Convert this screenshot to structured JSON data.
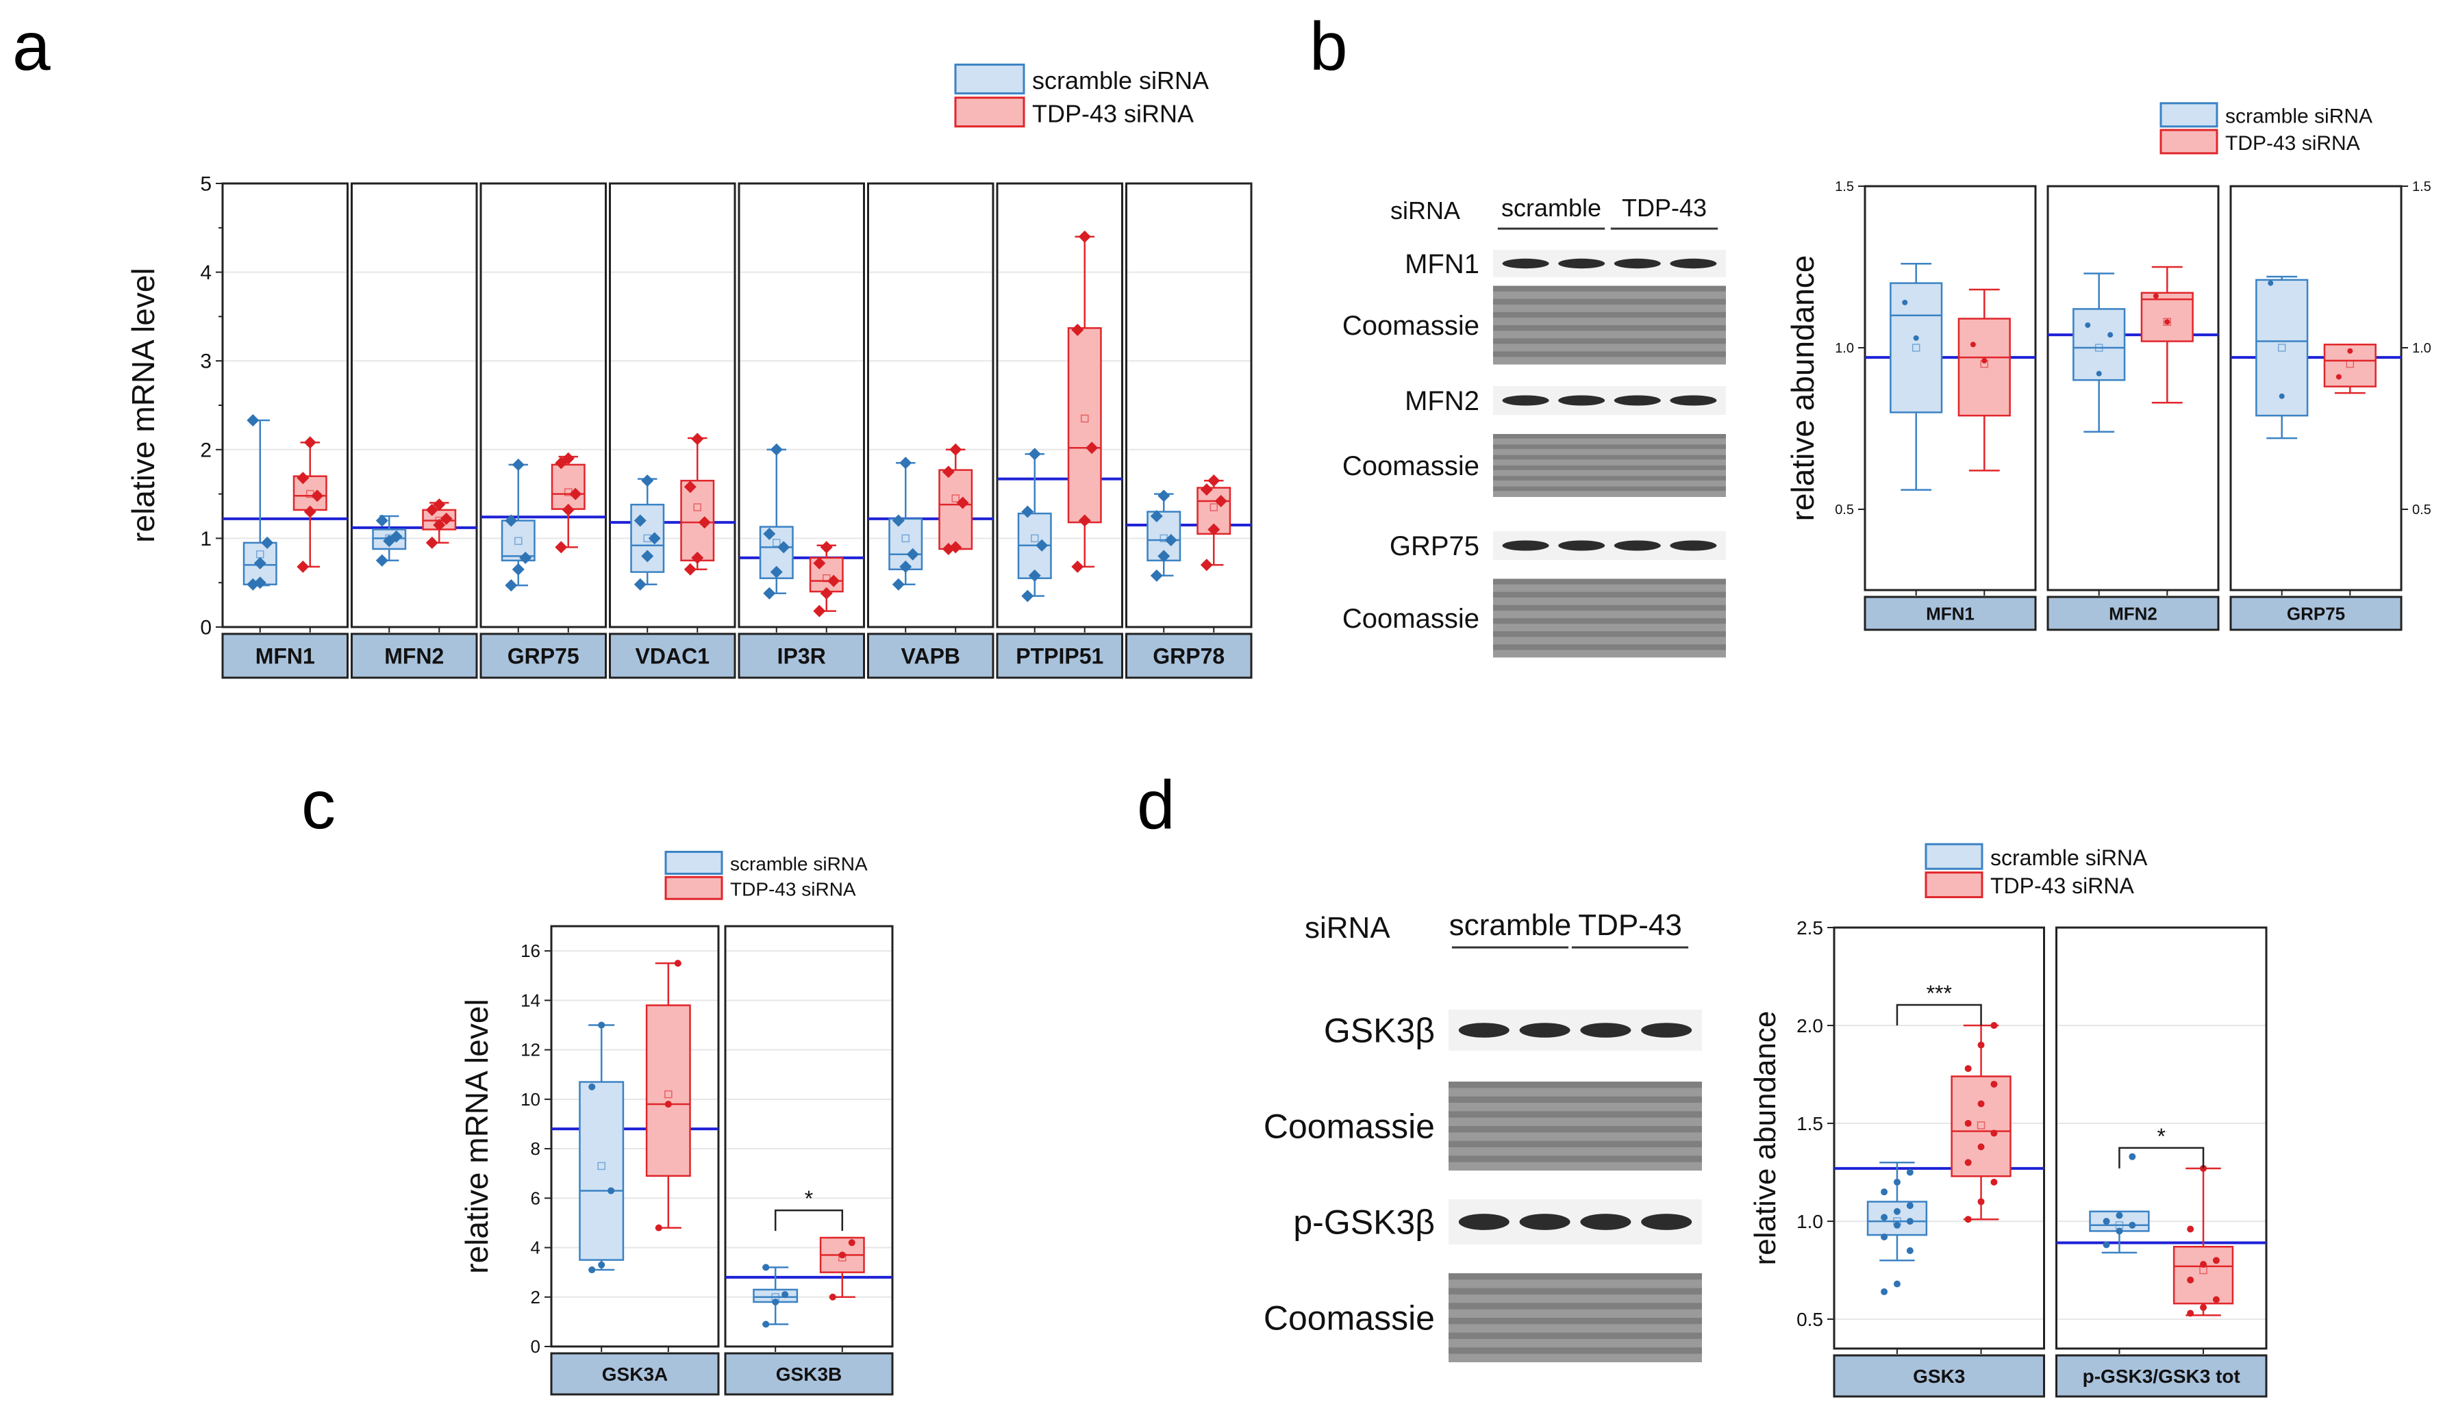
{
  "figure": {
    "panel_labels": [
      "a",
      "b",
      "c",
      "d"
    ]
  },
  "colors": {
    "scramble_fill": "#cfe1f3",
    "scramble_stroke": "#3b82c4",
    "scramble_point": "#2f74b5",
    "tdp_fill": "#f8b8b8",
    "tdp_stroke": "#e0262b",
    "tdp_point": "#d81e24",
    "mean_line": "#1f22d6",
    "strip_fill": "#a9c2dc",
    "blot_band": "#2c2c2c"
  },
  "legend": {
    "scramble": "scramble siRNA",
    "tdp": "TDP-43 siRNA"
  },
  "blots": {
    "b": {
      "header_label": "siRNA",
      "groups": [
        "scramble",
        "TDP-43"
      ],
      "rows": [
        {
          "label": "MFN1",
          "kind": "band"
        },
        {
          "label": "Coomassie",
          "kind": "coomassie"
        },
        {
          "label": "MFN2",
          "kind": "band"
        },
        {
          "label": "Coomassie",
          "kind": "coomassie"
        },
        {
          "label": "GRP75",
          "kind": "band"
        },
        {
          "label": "Coomassie",
          "kind": "coomassie"
        }
      ]
    },
    "d": {
      "header_label": "siRNA",
      "groups": [
        "scramble",
        "TDP-43"
      ],
      "rows": [
        {
          "label": "GSK3β",
          "kind": "band"
        },
        {
          "label": "Coomassie",
          "kind": "coomassie"
        },
        {
          "label": "p-GSK3β",
          "kind": "band"
        },
        {
          "label": "Coomassie",
          "kind": "coomassie"
        }
      ]
    }
  },
  "chart_data": [
    {
      "id": "a",
      "type": "box",
      "ylabel": "relative mRNA level",
      "ylim": [
        0,
        5
      ],
      "yticks": [
        0,
        1,
        2,
        3,
        4,
        5
      ],
      "legend": [
        "scramble siRNA",
        "TDP-43 siRNA"
      ],
      "groups": [
        {
          "name": "MFN1",
          "mean_line": 1.22,
          "scramble": {
            "q1": 0.48,
            "median": 0.7,
            "q3": 0.95,
            "min": 0.47,
            "max": 2.33,
            "mean": 0.82,
            "points": [
              0.48,
              0.72,
              0.95,
              2.33,
              0.5
            ]
          },
          "tdp": {
            "q1": 1.32,
            "median": 1.48,
            "q3": 1.7,
            "min": 0.68,
            "max": 2.08,
            "mean": 1.5,
            "points": [
              0.68,
              1.3,
              1.48,
              1.68,
              2.08
            ]
          }
        },
        {
          "name": "MFN2",
          "mean_line": 1.12,
          "scramble": {
            "q1": 0.88,
            "median": 1.0,
            "q3": 1.1,
            "min": 0.75,
            "max": 1.25,
            "mean": 1.0,
            "points": [
              0.75,
              0.97,
              1.02,
              1.2
            ]
          },
          "tdp": {
            "q1": 1.1,
            "median": 1.2,
            "q3": 1.32,
            "min": 0.95,
            "max": 1.4,
            "mean": 1.2,
            "points": [
              0.95,
              1.15,
              1.22,
              1.32,
              1.38
            ]
          }
        },
        {
          "name": "GRP75",
          "mean_line": 1.24,
          "scramble": {
            "q1": 0.75,
            "median": 0.8,
            "q3": 1.2,
            "min": 0.47,
            "max": 1.83,
            "mean": 0.97,
            "points": [
              0.47,
              0.65,
              0.78,
              1.2,
              1.83
            ]
          },
          "tdp": {
            "q1": 1.33,
            "median": 1.5,
            "q3": 1.83,
            "min": 0.9,
            "max": 1.92,
            "mean": 1.52,
            "points": [
              0.9,
              1.32,
              1.5,
              1.85,
              1.9
            ]
          }
        },
        {
          "name": "VDAC1",
          "mean_line": 1.18,
          "scramble": {
            "q1": 0.62,
            "median": 0.92,
            "q3": 1.38,
            "min": 0.48,
            "max": 1.67,
            "mean": 1.0,
            "points": [
              0.48,
              0.8,
              1.0,
              1.2,
              1.65
            ]
          },
          "tdp": {
            "q1": 0.75,
            "median": 1.18,
            "q3": 1.65,
            "min": 0.65,
            "max": 2.13,
            "mean": 1.35,
            "points": [
              0.65,
              0.78,
              1.18,
              1.58,
              2.12
            ]
          }
        },
        {
          "name": "IP3R",
          "mean_line": 0.78,
          "scramble": {
            "q1": 0.55,
            "median": 0.9,
            "q3": 1.13,
            "min": 0.38,
            "max": 2.0,
            "mean": 0.95,
            "points": [
              0.38,
              0.62,
              0.9,
              1.05,
              2.0
            ]
          },
          "tdp": {
            "q1": 0.4,
            "median": 0.52,
            "q3": 0.78,
            "min": 0.18,
            "max": 0.92,
            "mean": 0.55,
            "points": [
              0.18,
              0.38,
              0.52,
              0.72,
              0.9
            ]
          }
        },
        {
          "name": "VAPB",
          "mean_line": 1.22,
          "scramble": {
            "q1": 0.65,
            "median": 0.82,
            "q3": 1.22,
            "min": 0.48,
            "max": 1.85,
            "mean": 1.0,
            "points": [
              0.48,
              0.68,
              0.82,
              1.2,
              1.85
            ]
          },
          "tdp": {
            "q1": 0.88,
            "median": 1.38,
            "q3": 1.77,
            "min": 0.88,
            "max": 2.0,
            "mean": 1.45,
            "points": [
              0.88,
              0.9,
              1.4,
              1.75,
              2.0
            ]
          }
        },
        {
          "name": "PTPIP51",
          "mean_line": 1.67,
          "scramble": {
            "q1": 0.55,
            "median": 0.92,
            "q3": 1.28,
            "min": 0.35,
            "max": 1.95,
            "mean": 1.0,
            "points": [
              0.35,
              0.58,
              0.92,
              1.3,
              1.95
            ]
          },
          "tdp": {
            "q1": 1.18,
            "median": 2.02,
            "q3": 3.37,
            "min": 0.68,
            "max": 4.4,
            "mean": 2.35,
            "points": [
              0.68,
              1.2,
              2.02,
              3.35,
              4.4
            ]
          }
        },
        {
          "name": "GRP78",
          "mean_line": 1.15,
          "scramble": {
            "q1": 0.75,
            "median": 0.98,
            "q3": 1.3,
            "min": 0.58,
            "max": 1.5,
            "mean": 1.0,
            "points": [
              0.58,
              0.8,
              0.98,
              1.25,
              1.48
            ]
          },
          "tdp": {
            "q1": 1.05,
            "median": 1.42,
            "q3": 1.57,
            "min": 0.7,
            "max": 1.65,
            "mean": 1.35,
            "points": [
              0.7,
              1.1,
              1.42,
              1.55,
              1.65
            ]
          }
        }
      ]
    },
    {
      "id": "b",
      "type": "box",
      "ylabel": "relative abundance",
      "ylim": [
        0.25,
        1.5
      ],
      "yticks": [
        0.5,
        1.0,
        1.5
      ],
      "ytick_labels": [
        "0.5",
        "1.0",
        "1.5"
      ],
      "right_axis_labels": [
        "0.5",
        "1.0",
        "1.5"
      ],
      "legend": [
        "scramble siRNA",
        "TDP-43 siRNA"
      ],
      "groups": [
        {
          "name": "MFN1",
          "mean_line": 0.97,
          "scramble": {
            "q1": 0.8,
            "median": 1.1,
            "q3": 1.2,
            "min": 0.56,
            "max": 1.26,
            "mean": 1.0,
            "points": [
              1.14,
              1.03
            ]
          },
          "tdp": {
            "q1": 0.79,
            "median": 0.97,
            "q3": 1.09,
            "min": 0.62,
            "max": 1.18,
            "mean": 0.95,
            "points": [
              1.01,
              0.96
            ]
          }
        },
        {
          "name": "MFN2",
          "mean_line": 1.04,
          "scramble": {
            "q1": 0.9,
            "median": 1.0,
            "q3": 1.12,
            "min": 0.74,
            "max": 1.23,
            "mean": 1.0,
            "points": [
              1.07,
              0.92,
              1.04
            ]
          },
          "tdp": {
            "q1": 1.02,
            "median": 1.15,
            "q3": 1.17,
            "min": 0.83,
            "max": 1.25,
            "mean": 1.08,
            "points": [
              1.16,
              1.08
            ]
          }
        },
        {
          "name": "GRP75",
          "mean_line": 0.97,
          "scramble": {
            "q1": 0.79,
            "median": 1.02,
            "q3": 1.21,
            "min": 0.72,
            "max": 1.22,
            "mean": 1.0,
            "points": [
              1.2,
              0.85
            ]
          },
          "tdp": {
            "q1": 0.88,
            "median": 0.96,
            "q3": 1.01,
            "min": 0.86,
            "max": 1.01,
            "mean": 0.95,
            "points": [
              0.91,
              0.99
            ]
          }
        }
      ]
    },
    {
      "id": "c",
      "type": "box",
      "ylabel": "relative mRNA level",
      "ylim": [
        0,
        17
      ],
      "yticks": [
        0,
        2,
        4,
        6,
        8,
        10,
        12,
        14,
        16
      ],
      "legend": [
        "scramble siRNA",
        "TDP-43 siRNA"
      ],
      "groups": [
        {
          "name": "GSK3A",
          "mean_line": 8.8,
          "scramble": {
            "q1": 3.5,
            "median": 6.3,
            "q3": 10.7,
            "min": 3.1,
            "max": 13.0,
            "mean": 7.3,
            "points": [
              3.1,
              3.3,
              6.3,
              10.5,
              13.0
            ]
          },
          "tdp": {
            "q1": 6.9,
            "median": 9.8,
            "q3": 13.8,
            "min": 4.8,
            "max": 15.5,
            "mean": 10.2,
            "points": [
              4.8,
              9.8,
              15.5
            ]
          }
        },
        {
          "name": "GSK3B",
          "mean_line": 2.8,
          "significance": "*",
          "scramble": {
            "q1": 1.8,
            "median": 2.0,
            "q3": 2.3,
            "min": 0.9,
            "max": 3.2,
            "mean": 2.0,
            "points": [
              0.9,
              1.8,
              2.1,
              3.2
            ]
          },
          "tdp": {
            "q1": 3.0,
            "median": 3.7,
            "q3": 4.4,
            "min": 2.0,
            "max": 4.4,
            "mean": 3.6,
            "points": [
              2.0,
              3.7,
              4.2
            ]
          }
        }
      ]
    },
    {
      "id": "d",
      "type": "box",
      "ylabel": "relative abundance",
      "ylim": [
        0.35,
        2.5
      ],
      "yticks": [
        0.5,
        1.0,
        1.5,
        2.0,
        2.5
      ],
      "ytick_labels": [
        "0.5",
        "1.0",
        "1.5",
        "2.0",
        "2.5"
      ],
      "legend": [
        "scramble siRNA",
        "TDP-43 siRNA"
      ],
      "groups": [
        {
          "name": "GSK3",
          "mean_line": 1.27,
          "significance": "***",
          "scramble": {
            "q1": 0.93,
            "median": 1.0,
            "q3": 1.1,
            "min": 0.8,
            "max": 1.3,
            "mean": 1.0,
            "points": [
              0.64,
              0.68,
              0.85,
              0.92,
              0.98,
              1.0,
              1.02,
              1.05,
              1.08,
              1.15,
              1.2,
              1.25
            ]
          },
          "tdp": {
            "q1": 1.23,
            "median": 1.46,
            "q3": 1.74,
            "min": 1.01,
            "max": 2.0,
            "mean": 1.49,
            "points": [
              1.01,
              1.1,
              1.2,
              1.3,
              1.38,
              1.45,
              1.5,
              1.6,
              1.7,
              1.78,
              1.9,
              2.0
            ]
          }
        },
        {
          "name": "p-GSK3/GSK3 tot",
          "mean_line": 0.89,
          "significance": "*",
          "scramble": {
            "q1": 0.95,
            "median": 0.98,
            "q3": 1.05,
            "min": 0.84,
            "max": 1.05,
            "mean": 0.98,
            "points": [
              0.88,
              0.95,
              0.98,
              1.0,
              1.03,
              1.33
            ]
          },
          "tdp": {
            "q1": 0.58,
            "median": 0.77,
            "q3": 0.87,
            "min": 0.52,
            "max": 1.27,
            "mean": 0.75,
            "points": [
              0.53,
              0.56,
              0.6,
              0.7,
              0.78,
              0.8,
              0.96,
              1.27
            ]
          }
        }
      ]
    }
  ]
}
